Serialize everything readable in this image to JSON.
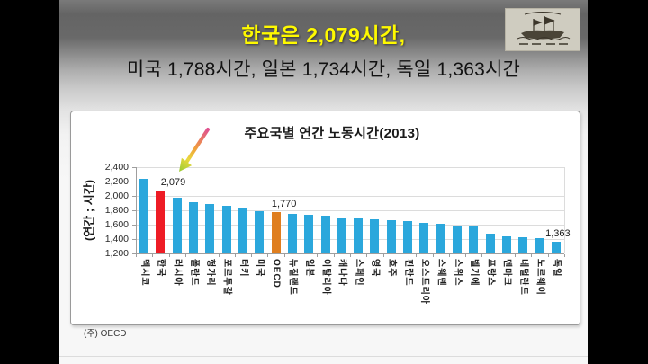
{
  "header": {
    "title": "한국은 2,079시간,",
    "title_color": "#fef900",
    "subtitle": "미국 1,788시간, 일본 1,734시간, 독일 1,363시간"
  },
  "logo": {
    "icon": "turtle-ship-stamp-icon"
  },
  "source_note": "(주) OECD",
  "colors": {
    "bar_default": "#2BA7DC",
    "bar_korea": "#EE1C25",
    "bar_oecd": "#DF7E1F",
    "gridline": "#dcdcdc",
    "axis": "#9e9e9e"
  },
  "chart_data": {
    "type": "bar",
    "title": "주요국별 연간 노동시간(2013)",
    "ylabel": "(연간 ; 시간)",
    "xlabel": "",
    "ylim": [
      1200,
      2400
    ],
    "ytick_step": 200,
    "grid": true,
    "legend": "none",
    "categories": [
      "멕시코",
      "한국",
      "러시아",
      "폴란드",
      "헝가리",
      "포르투갈",
      "터키",
      "미국",
      "OECD",
      "뉴질랜드",
      "일본",
      "이탈리아",
      "캐나다",
      "스페인",
      "영국",
      "호주",
      "핀란드",
      "오스트리아",
      "스웨덴",
      "스위스",
      "벨기에",
      "프랑스",
      "덴마크",
      "네덜란드",
      "노르웨이",
      "독일"
    ],
    "values": [
      2237,
      2079,
      1980,
      1918,
      1883,
      1857,
      1832,
      1788,
      1770,
      1752,
      1734,
      1725,
      1706,
      1699,
      1669,
      1663,
      1645,
      1623,
      1607,
      1585,
      1570,
      1474,
      1438,
      1421,
      1408,
      1363
    ],
    "highlight_indices": {
      "1": "#EE1C25",
      "8": "#DF7E1F"
    },
    "data_labels": [
      {
        "index": 1,
        "text": "2,079",
        "dx": 14
      },
      {
        "index": 8,
        "text": "1,770",
        "dx": 9
      },
      {
        "index": 25,
        "text": "1,363",
        "dx": 2
      }
    ],
    "annotation": {
      "type": "arrow",
      "target_category": "한국"
    }
  }
}
